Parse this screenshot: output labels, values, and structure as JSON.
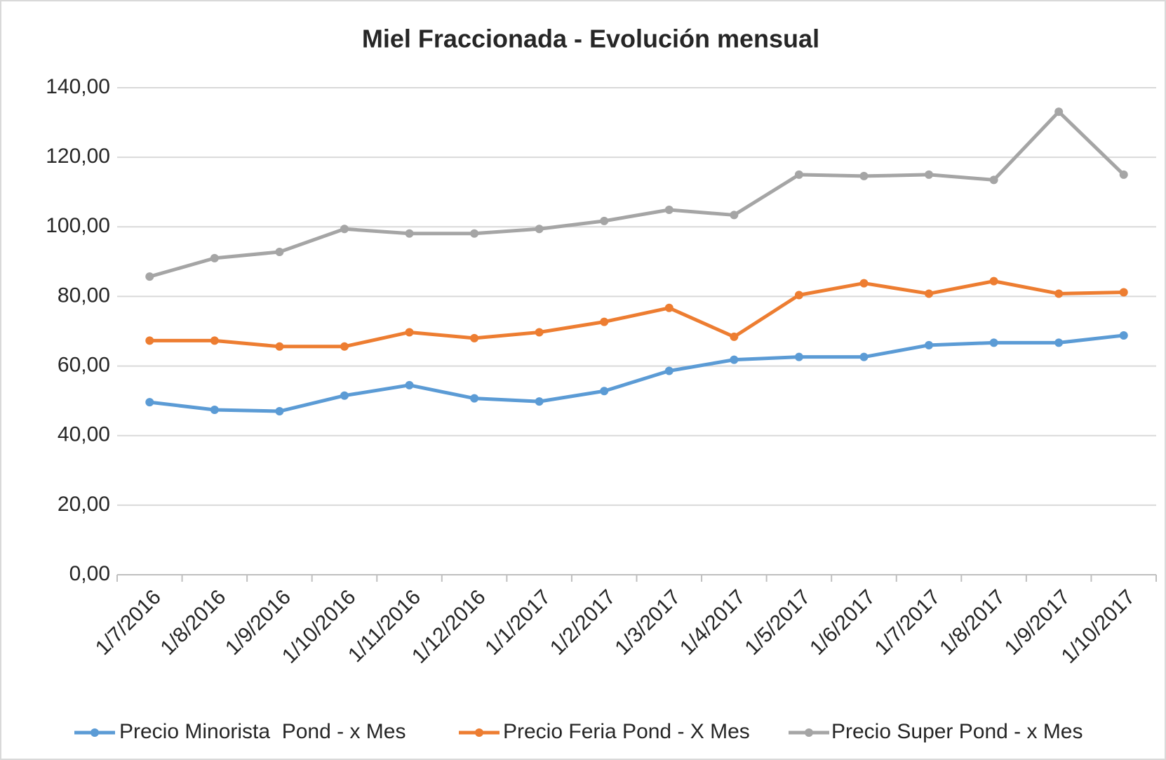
{
  "chart_data": {
    "type": "line",
    "title": "Miel Fraccionada - Evolución mensual",
    "categories": [
      "1/7/2016",
      "1/8/2016",
      "1/9/2016",
      "1/10/2016",
      "1/11/2016",
      "1/12/2016",
      "1/1/2017",
      "1/2/2017",
      "1/3/2017",
      "1/4/2017",
      "1/5/2017",
      "1/6/2017",
      "1/7/2017",
      "1/8/2017",
      "1/9/2017",
      "1/10/2017"
    ],
    "series": [
      {
        "name": "Precio Minorista  Pond - x Mes",
        "color": "#5b9bd5",
        "values": [
          49.6,
          47.4,
          47.0,
          51.5,
          54.5,
          50.7,
          49.8,
          52.8,
          58.6,
          61.8,
          62.6,
          62.6,
          66.0,
          66.7,
          66.7,
          68.8
        ]
      },
      {
        "name": "Precio Feria Pond - X Mes",
        "color": "#ed7d31",
        "values": [
          67.3,
          67.3,
          65.6,
          65.6,
          69.7,
          68.0,
          69.7,
          72.7,
          76.7,
          68.4,
          80.4,
          83.8,
          80.8,
          84.4,
          80.8,
          81.2
        ]
      },
      {
        "name": "Precio Super Pond - x Mes",
        "color": "#a5a5a5",
        "values": [
          85.7,
          91.0,
          92.8,
          99.4,
          98.1,
          98.1,
          99.4,
          101.7,
          104.9,
          103.4,
          115.0,
          114.6,
          115.0,
          113.5,
          133.1,
          115.0
        ]
      }
    ],
    "ylim": [
      0,
      140
    ],
    "yticks": [
      {
        "value": 0,
        "label": "0,00"
      },
      {
        "value": 20,
        "label": "20,00"
      },
      {
        "value": 40,
        "label": "40,00"
      },
      {
        "value": 60,
        "label": "60,00"
      },
      {
        "value": 80,
        "label": "80,00"
      },
      {
        "value": 100,
        "label": "100,00"
      },
      {
        "value": 120,
        "label": "120,00"
      },
      {
        "value": 140,
        "label": "140,00"
      }
    ],
    "grid": true,
    "legend": "bottom"
  }
}
